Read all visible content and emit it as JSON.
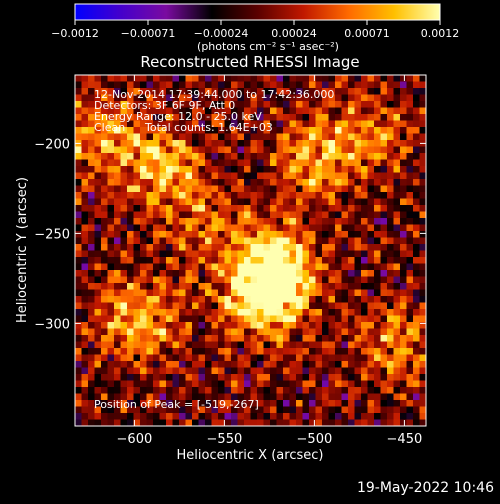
{
  "colorbar": {
    "ticks": [
      "-0.0012",
      "-0.00071",
      "-0.00024",
      "0.00024",
      "0.00071",
      "0.0012"
    ],
    "unit": "(photons cm⁻² s⁻¹ asec⁻²)",
    "stops": [
      "#0000ff",
      "#4400cc",
      "#7a0aa0",
      "#000000",
      "#5a0000",
      "#c01800",
      "#ff6a00",
      "#ffc000",
      "#ffffb0"
    ]
  },
  "header": {
    "time_range": "12-Nov-2014 17:39:44.000 to 17:42:36.000",
    "detectors": "Detectors: 3F 6F 9F, Att 0",
    "energy": "Energy Range: 12.0 - 25.0 keV",
    "clean": "Clean",
    "total_counts": "Total counts: 1.64E+03"
  },
  "peak_label": "Position of Peak = [-519,-267]",
  "date_stamp": "19-May-2022 10:46",
  "chart_data": {
    "type": "heatmap",
    "title": "Reconstructed RHESSI Image",
    "xlabel": "Heliocentric X (arcsec)",
    "ylabel": "Heliocentric Y (arcsec)",
    "xlim": [
      -633,
      -438
    ],
    "ylim": [
      -357,
      -162
    ],
    "xticks": [
      -600,
      -550,
      -500,
      -450
    ],
    "yticks": [
      -300,
      -250,
      -200
    ],
    "xtick_labels": [
      "−600",
      "−550",
      "−500",
      "−450"
    ],
    "ytick_labels": [
      "−300",
      "−250",
      "−200"
    ],
    "peak": [
      -519,
      -267
    ],
    "sources": [
      {
        "x": -522,
        "y": -268,
        "intensity": 1.0
      },
      {
        "x": -528,
        "y": -287,
        "intensity": 0.85
      },
      {
        "x": -585,
        "y": -213,
        "intensity": 0.7
      },
      {
        "x": -598,
        "y": -298,
        "intensity": 0.7
      },
      {
        "x": -500,
        "y": -208,
        "intensity": 0.6
      },
      {
        "x": -620,
        "y": -195,
        "intensity": 0.55
      },
      {
        "x": -455,
        "y": -310,
        "intensity": 0.5
      },
      {
        "x": -470,
        "y": -195,
        "intensity": 0.45
      },
      {
        "x": -560,
        "y": -245,
        "intensity": 0.4
      }
    ]
  }
}
